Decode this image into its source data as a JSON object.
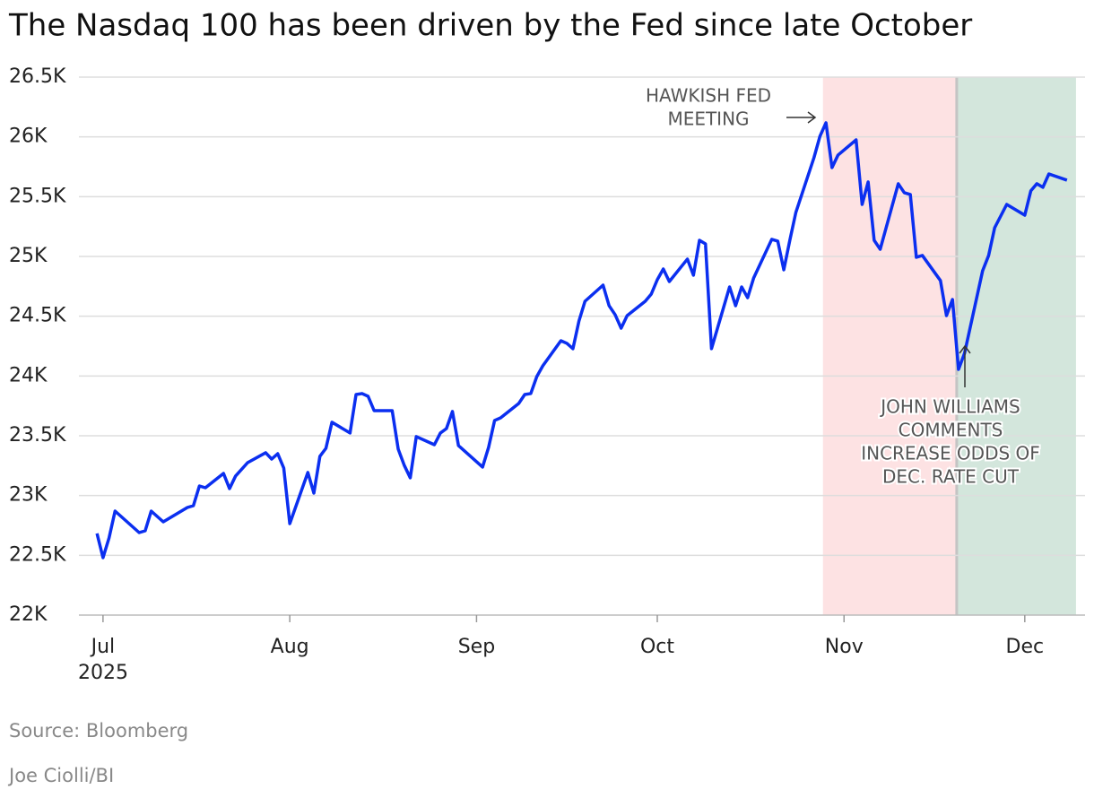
{
  "chart_data": {
    "type": "line",
    "title": "The Nasdaq 100 has been driven by the Fed since late October",
    "source": "Source: Bloomberg",
    "byline": "Joe Ciolli/BI",
    "x_year": "2025",
    "xlim": [
      -4,
      163
    ],
    "ylim": [
      22000,
      26500
    ],
    "grid": true,
    "yticks": [
      {
        "value": 22000,
        "label": "22K"
      },
      {
        "value": 22500,
        "label": "22.5K"
      },
      {
        "value": 23000,
        "label": "23K"
      },
      {
        "value": 23500,
        "label": "23.5K"
      },
      {
        "value": 24000,
        "label": "24K"
      },
      {
        "value": 24500,
        "label": "24.5K"
      },
      {
        "value": 25000,
        "label": "25K"
      },
      {
        "value": 25500,
        "label": "25.5K"
      },
      {
        "value": 26000,
        "label": "26K"
      },
      {
        "value": 26500,
        "label": "26.5K"
      }
    ],
    "xticks": [
      {
        "value": 0,
        "label": "Jul"
      },
      {
        "value": 31,
        "label": "Aug"
      },
      {
        "value": 62,
        "label": "Sep"
      },
      {
        "value": 92,
        "label": "Oct"
      },
      {
        "value": 123,
        "label": "Nov"
      },
      {
        "value": 153,
        "label": "Dec"
      }
    ],
    "regions": [
      {
        "start": 119.5,
        "end": 141.7,
        "color": "#fde2e3"
      },
      {
        "start": 141.7,
        "end": 161.5,
        "color": "#d3e6dc"
      }
    ],
    "annotations": [
      {
        "lines": [
          "HAWKISH FED",
          "MEETING"
        ]
      },
      {
        "lines": [
          "JOHN WILLIAMS",
          "COMMENTS",
          "INCREASE ODDS OF",
          "DEC. RATE CUT"
        ]
      }
    ],
    "series": [
      {
        "name": "Nasdaq 100",
        "color": "#0b2ff0",
        "x": [
          -1,
          0,
          1,
          2,
          6,
          7,
          8,
          9,
          10,
          14,
          15,
          16,
          17,
          20,
          21,
          22,
          24,
          27,
          28,
          29,
          30,
          31,
          34,
          35,
          36,
          37,
          38,
          41,
          42,
          43,
          44,
          45,
          48,
          49,
          50,
          51,
          52,
          55,
          56,
          57,
          58,
          59,
          63,
          64,
          65,
          66,
          69,
          70,
          71,
          72,
          73,
          76,
          77,
          78,
          79,
          80,
          83,
          84,
          85,
          86,
          87,
          90,
          91,
          92,
          93,
          94,
          97,
          98,
          99,
          100,
          101,
          104,
          105,
          106,
          107,
          108,
          111,
          112,
          113,
          114,
          115,
          118,
          119,
          120,
          121,
          122,
          125,
          126,
          127,
          128,
          129,
          132,
          133,
          134,
          135,
          136,
          139,
          140,
          141,
          142,
          143,
          146,
          147,
          148,
          150,
          153,
          154,
          155,
          156,
          157,
          160
        ],
        "values": [
          22683,
          22480,
          22645,
          22870,
          22690,
          22705,
          22870,
          22825,
          22780,
          22900,
          22915,
          23080,
          23065,
          23185,
          23058,
          23163,
          23275,
          23358,
          23305,
          23350,
          23230,
          22765,
          23193,
          23020,
          23328,
          23395,
          23613,
          23523,
          23845,
          23853,
          23830,
          23710,
          23710,
          23388,
          23253,
          23148,
          23493,
          23425,
          23523,
          23560,
          23703,
          23418,
          23238,
          23403,
          23628,
          23650,
          23770,
          23845,
          23853,
          23995,
          24085,
          24295,
          24273,
          24228,
          24460,
          24625,
          24760,
          24588,
          24513,
          24400,
          24505,
          24625,
          24685,
          24805,
          24895,
          24790,
          24978,
          24843,
          25135,
          25105,
          24228,
          24745,
          24588,
          24745,
          24655,
          24820,
          25143,
          25128,
          24888,
          25135,
          25368,
          25825,
          26005,
          26118,
          25743,
          25848,
          25975,
          25435,
          25623,
          25135,
          25060,
          25608,
          25533,
          25518,
          24993,
          25008,
          24798,
          24505,
          24640,
          24055,
          24190,
          24880,
          25008,
          25240,
          25435,
          25345,
          25548,
          25608,
          25578,
          25690,
          25638
        ]
      }
    ]
  }
}
